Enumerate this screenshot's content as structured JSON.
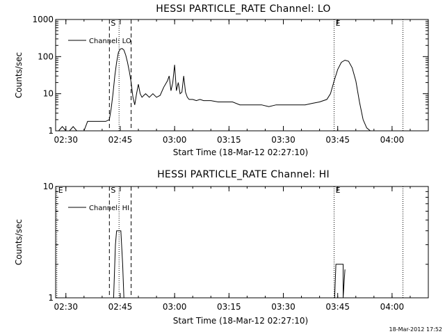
{
  "chart_data": [
    {
      "type": "line",
      "title": "HESSI PARTICLE_RATE Channel: LO",
      "xlabel": "Start Time (18-Mar-12 02:27:10)",
      "ylabel": "Counts/sec",
      "y_scale": "log",
      "ylim": [
        1,
        1000
      ],
      "y_ticks": [
        {
          "label": "1",
          "value": 1
        },
        {
          "label": "10",
          "value": 10
        },
        {
          "label": "100",
          "value": 100
        },
        {
          "label": "1000",
          "value": 1000
        }
      ],
      "xlim": [
        "02:27:10",
        "04:10:00"
      ],
      "x_ticks": [
        "02:30",
        "02:45",
        "03:00",
        "03:15",
        "03:30",
        "03:45",
        "04:00"
      ],
      "legend": {
        "label": "Channel: LO",
        "position": "top-left"
      },
      "markers": [
        {
          "label": "S",
          "time": "02:42:00",
          "style": "dashed"
        },
        {
          "label": "",
          "time": "02:48:00",
          "style": "dashed"
        },
        {
          "label": "",
          "time": "02:44:40",
          "style": "dotted"
        },
        {
          "label": "E",
          "time": "03:44:00",
          "style": "dotted"
        },
        {
          "label": "",
          "time": "04:03:00",
          "style": "dotted"
        }
      ],
      "series": [
        {
          "name": "Channel: LO",
          "x": [
            "02:28:00",
            "02:29:00",
            "02:30:00",
            "02:31:00",
            "02:32:00",
            "02:33:00",
            "02:34:00",
            "02:35:00",
            "02:36:00",
            "02:37:00",
            "02:38:00",
            "02:39:00",
            "02:40:00",
            "02:41:00",
            "02:42:00",
            "02:42:30",
            "02:43:00",
            "02:43:30",
            "02:44:00",
            "02:44:30",
            "02:45:00",
            "02:45:30",
            "02:46:00",
            "02:46:30",
            "02:47:00",
            "02:47:30",
            "02:48:00",
            "02:48:30",
            "02:49:00",
            "02:49:30",
            "02:50:00",
            "02:50:30",
            "02:51:00",
            "02:51:30",
            "02:52:00",
            "02:52:30",
            "02:53:00",
            "02:54:00",
            "02:55:00",
            "02:56:00",
            "02:57:00",
            "02:58:00",
            "02:58:30",
            "02:59:00",
            "02:59:30",
            "03:00:00",
            "03:00:30",
            "03:01:00",
            "03:01:30",
            "03:02:00",
            "03:02:30",
            "03:03:00",
            "03:03:30",
            "03:04:00",
            "03:05:00",
            "03:06:00",
            "03:07:00",
            "03:08:00",
            "03:10:00",
            "03:12:00",
            "03:14:00",
            "03:16:00",
            "03:18:00",
            "03:20:00",
            "03:22:00",
            "03:24:00",
            "03:26:00",
            "03:28:00",
            "03:30:00",
            "03:32:00",
            "03:34:00",
            "03:36:00",
            "03:38:00",
            "03:40:00",
            "03:42:00",
            "03:43:00",
            "03:44:00",
            "03:45:00",
            "03:46:00",
            "03:47:00",
            "03:48:00",
            "03:49:00",
            "03:50:00",
            "03:51:00",
            "03:52:00",
            "03:53:00",
            "03:54:00"
          ],
          "y": [
            1,
            1.3,
            1,
            1,
            1.3,
            1,
            1,
            1,
            1.8,
            1.8,
            1.8,
            1.8,
            1.8,
            1.8,
            2,
            4,
            10,
            30,
            70,
            130,
            160,
            165,
            150,
            110,
            70,
            40,
            20,
            8,
            5,
            10,
            18,
            10,
            8,
            9,
            10,
            9,
            8,
            10,
            8,
            9,
            15,
            22,
            30,
            12,
            20,
            60,
            12,
            20,
            10,
            11,
            30,
            11,
            8,
            7,
            7,
            6.5,
            7,
            6.5,
            6.5,
            6,
            6,
            6,
            5,
            5,
            5,
            5,
            4.5,
            5,
            5,
            5,
            5,
            5,
            5.5,
            6,
            7,
            10,
            22,
            45,
            70,
            80,
            75,
            50,
            22,
            6,
            2,
            1.2,
            1
          ]
        }
      ]
    },
    {
      "type": "line",
      "title": "HESSI PARTICLE_RATE Channel: HI",
      "xlabel": "Start Time (18-Mar-12 02:27:10)",
      "ylabel": "Counts/sec",
      "y_scale": "log",
      "ylim": [
        1,
        10
      ],
      "y_ticks": [
        {
          "label": "1",
          "value": 1
        },
        {
          "label": "10",
          "value": 10
        }
      ],
      "xlim": [
        "02:27:10",
        "04:10:00"
      ],
      "x_ticks": [
        "02:30",
        "02:45",
        "03:00",
        "03:15",
        "03:30",
        "03:45",
        "04:00"
      ],
      "legend": {
        "label": "Channel: HI",
        "position": "top-left"
      },
      "markers": [
        {
          "label": "E",
          "time": "02:27:30",
          "style": "dotted"
        },
        {
          "label": "S",
          "time": "02:42:00",
          "style": "dashed"
        },
        {
          "label": "",
          "time": "02:48:00",
          "style": "dashed"
        },
        {
          "label": "",
          "time": "02:44:40",
          "style": "dotted"
        },
        {
          "label": "E",
          "time": "03:44:00",
          "style": "dotted"
        },
        {
          "label": "",
          "time": "04:03:00",
          "style": "dotted"
        }
      ],
      "series": [
        {
          "name": "Channel: HI",
          "segments": [
            {
              "x": [
                "02:43:10",
                "02:43:40",
                "02:44:00",
                "02:44:30",
                "02:45:10",
                "02:45:40",
                "02:46:00"
              ],
              "y": [
                1,
                3,
                4,
                4,
                4,
                2,
                1
              ]
            },
            {
              "x": [
                "03:44:10",
                "03:44:30",
                "03:45:30",
                "03:46:30",
                "03:46:30",
                "03:47:00"
              ],
              "y": [
                1,
                2,
                2,
                2,
                1,
                1.8
              ]
            }
          ]
        }
      ]
    }
  ],
  "footer": {
    "timestamp": "18-Mar-2012 17:52"
  }
}
